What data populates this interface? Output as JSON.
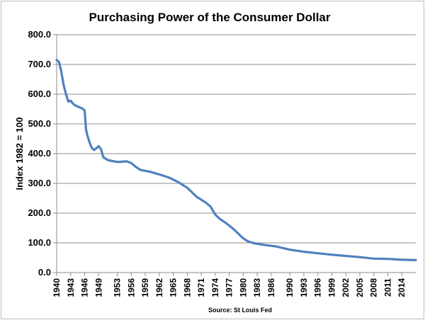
{
  "chart_data": {
    "type": "line",
    "title": "Purchasing Power of the Consumer Dollar",
    "ylabel": "Index 1982 = 100",
    "xlabel": "",
    "source": "Source: St Louis Fed",
    "xlim": [
      1940,
      2017
    ],
    "ylim": [
      0,
      800
    ],
    "y_ticks": [
      "0.0",
      "100.0",
      "200.0",
      "300.0",
      "400.0",
      "500.0",
      "600.0",
      "700.0",
      "800.0"
    ],
    "x_ticks": [
      "1940",
      "1943",
      "1946",
      "1949",
      "1953",
      "1956",
      "1959",
      "1962",
      "1965",
      "1968",
      "1971",
      "1974",
      "1977",
      "1980",
      "1983",
      "1986",
      "1990",
      "1993",
      "1996",
      "1999",
      "2002",
      "2005",
      "2008",
      "2011",
      "2014"
    ],
    "grid": true,
    "legend": "none",
    "line_color": "#4f81bd",
    "series": [
      {
        "x": [
          1940,
          1940.5,
          1941,
          1941.5,
          1942,
          1942.5,
          1943,
          1943.5,
          1944,
          1945,
          1945.5,
          1946,
          1946.3,
          1946.6,
          1947,
          1947.5,
          1948,
          1948.5,
          1949,
          1949.5,
          1950,
          1951,
          1952,
          1953,
          1955,
          1956,
          1957,
          1958,
          1960,
          1962,
          1964,
          1966,
          1968,
          1970,
          1972,
          1973,
          1974,
          1975,
          1976,
          1977,
          1978,
          1979,
          1980,
          1981,
          1982,
          1983,
          1985,
          1987,
          1990,
          1993,
          1996,
          1999,
          2002,
          2005,
          2008,
          2011,
          2014,
          2017
        ],
        "values": [
          715,
          708,
          675,
          630,
          600,
          575,
          578,
          568,
          562,
          555,
          552,
          545,
          480,
          460,
          440,
          420,
          412,
          418,
          425,
          415,
          388,
          378,
          375,
          372,
          374,
          368,
          355,
          345,
          339,
          330,
          320,
          305,
          285,
          255,
          235,
          222,
          195,
          180,
          170,
          158,
          145,
          130,
          115,
          105,
          100,
          97,
          92,
          88,
          77,
          70,
          65,
          60,
          56,
          52,
          47,
          46,
          43,
          42
        ]
      }
    ]
  }
}
